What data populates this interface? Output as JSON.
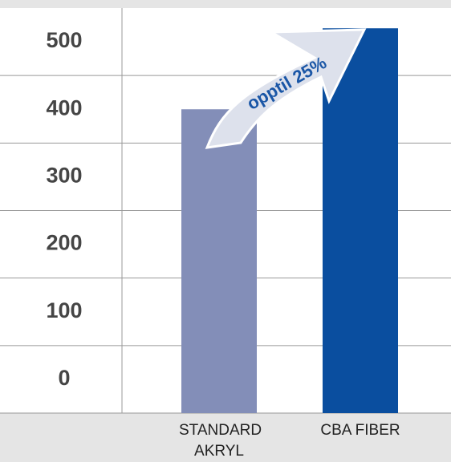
{
  "chart_data": {
    "type": "bar",
    "categories": [
      "STANDARD AKRYL",
      "CBA FIBER"
    ],
    "series": [
      {
        "values": [
          450,
          570
        ],
        "colors": [
          "#838eb8",
          "#0a4e9f"
        ]
      }
    ],
    "ylim": [
      0,
      600
    ],
    "yticks": [
      0,
      100,
      200,
      300,
      400,
      500
    ],
    "grid": true,
    "annotation": "opptil 25%"
  }
}
